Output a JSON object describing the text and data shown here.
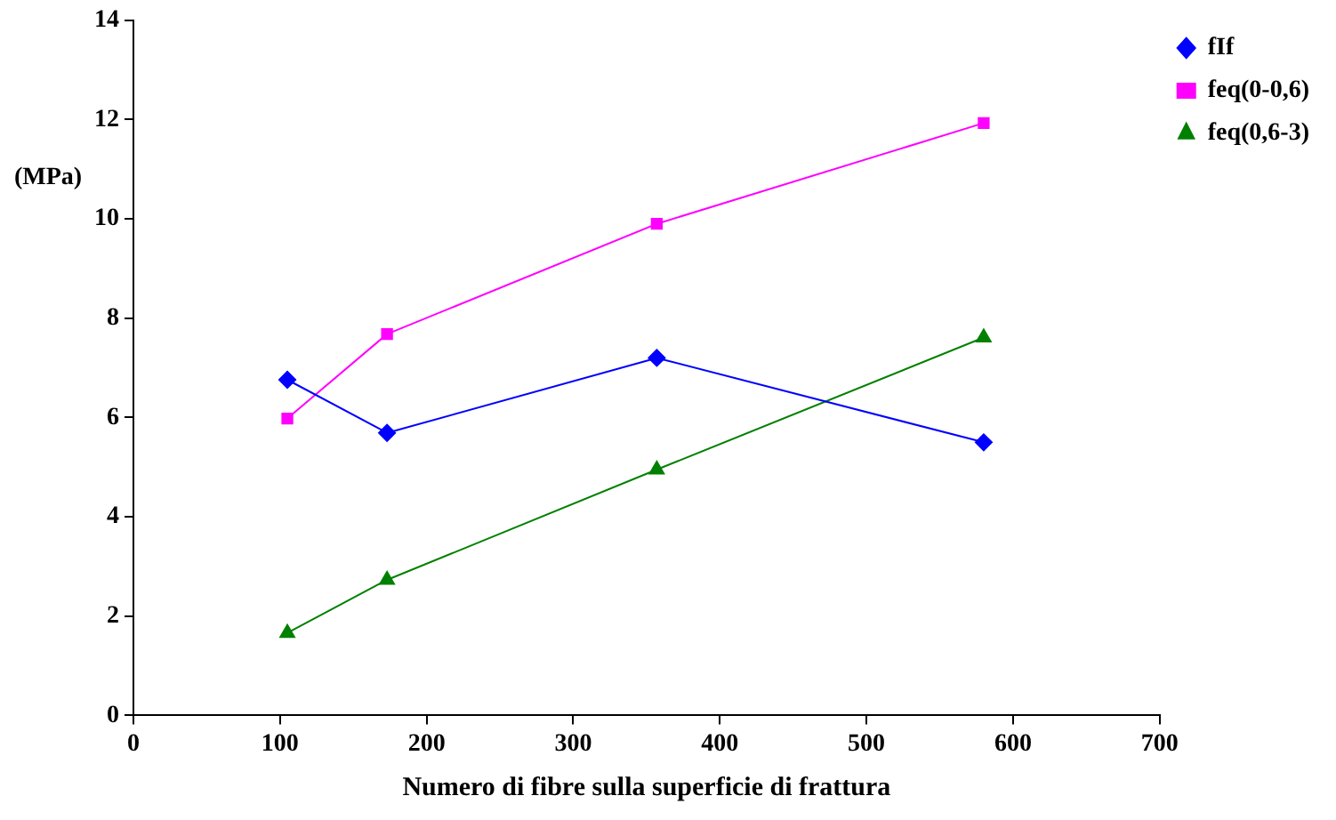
{
  "chart_data": {
    "type": "line",
    "xlabel": "Numero di fibre sulla superficie di frattura",
    "ylabel": "(MPa)",
    "x": [
      105,
      173,
      357,
      580
    ],
    "series": [
      {
        "name": "fIf",
        "color": "#0000ff",
        "marker": "diamond",
        "values": [
          6.76,
          5.69,
          7.2,
          5.5
        ]
      },
      {
        "name": "feq(0-0,6)",
        "color": "#ff00ff",
        "marker": "square",
        "values": [
          5.98,
          7.68,
          9.9,
          11.93
        ]
      },
      {
        "name": "feq(0,6-3)",
        "color": "#008000",
        "marker": "triangle",
        "values": [
          1.66,
          2.73,
          4.95,
          7.61
        ]
      }
    ],
    "xlim": [
      0,
      700
    ],
    "xticks": [
      0,
      100,
      200,
      300,
      400,
      500,
      600,
      700
    ],
    "ylim": [
      0,
      14
    ],
    "yticks": [
      0,
      2,
      4,
      6,
      8,
      10,
      12,
      14
    ],
    "grid": false,
    "legend": "top right"
  }
}
